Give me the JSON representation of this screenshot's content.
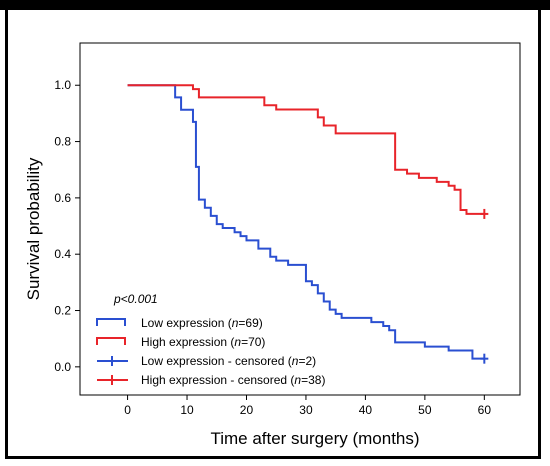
{
  "chart_data": {
    "type": "line",
    "subtype": "kaplan-meier",
    "xlabel": "Time after surgery (months)",
    "ylabel": "Survival probability",
    "xlim": [
      -8,
      66
    ],
    "ylim": [
      -0.1,
      1.15
    ],
    "x_ticks": [
      0,
      10,
      20,
      30,
      40,
      50,
      60
    ],
    "y_ticks": [
      0.0,
      0.2,
      0.4,
      0.6,
      0.8,
      1.0
    ],
    "x_tick_labels": [
      "0",
      "10",
      "20",
      "30",
      "40",
      "50",
      "60"
    ],
    "y_tick_labels": [
      "0.0",
      "0.2",
      "0.4",
      "0.6",
      "0.8",
      "1.0"
    ],
    "annotation": "p<0.001",
    "series": [
      {
        "key": "low",
        "label_prefix": "Low expression (",
        "label_n": "n",
        "label_suffix": "=69)",
        "color": "#2a4fd1",
        "x": [
          0,
          8,
          9,
          11,
          11.5,
          12,
          13,
          14,
          15,
          16,
          18,
          19,
          20,
          22,
          24,
          25,
          27,
          30,
          31,
          32,
          33,
          34,
          35,
          36,
          38,
          41,
          43,
          44,
          45,
          50,
          54,
          58,
          60
        ],
        "y": [
          1.0,
          0.957,
          0.913,
          0.87,
          0.71,
          0.594,
          0.565,
          0.536,
          0.507,
          0.493,
          0.478,
          0.464,
          0.449,
          0.42,
          0.391,
          0.377,
          0.362,
          0.304,
          0.29,
          0.261,
          0.232,
          0.203,
          0.188,
          0.174,
          0.174,
          0.159,
          0.145,
          0.13,
          0.087,
          0.072,
          0.058,
          0.029,
          0.029
        ]
      },
      {
        "key": "high",
        "label_prefix": "High expression (",
        "label_n": "n",
        "label_suffix": "=70)",
        "color": "#e8242a",
        "x": [
          0,
          11,
          12,
          23,
          25,
          32,
          33,
          35,
          45,
          47,
          49,
          52,
          54,
          55,
          56,
          57,
          60
        ],
        "y": [
          1.0,
          0.986,
          0.957,
          0.929,
          0.914,
          0.886,
          0.857,
          0.829,
          0.7,
          0.686,
          0.671,
          0.657,
          0.643,
          0.629,
          0.557,
          0.543,
          0.543
        ]
      }
    ],
    "censored": [
      {
        "key": "low",
        "label_prefix": "Low expression - censored (",
        "label_n": "n",
        "label_suffix": "=2)",
        "color": "#2a4fd1",
        "x": [
          60
        ],
        "y": [
          0.029
        ]
      },
      {
        "key": "high",
        "label_prefix": "High expression - censored (",
        "label_n": "n",
        "label_suffix": "=38)",
        "color": "#e8242a",
        "x": [
          60
        ],
        "y": [
          0.543
        ]
      }
    ]
  }
}
